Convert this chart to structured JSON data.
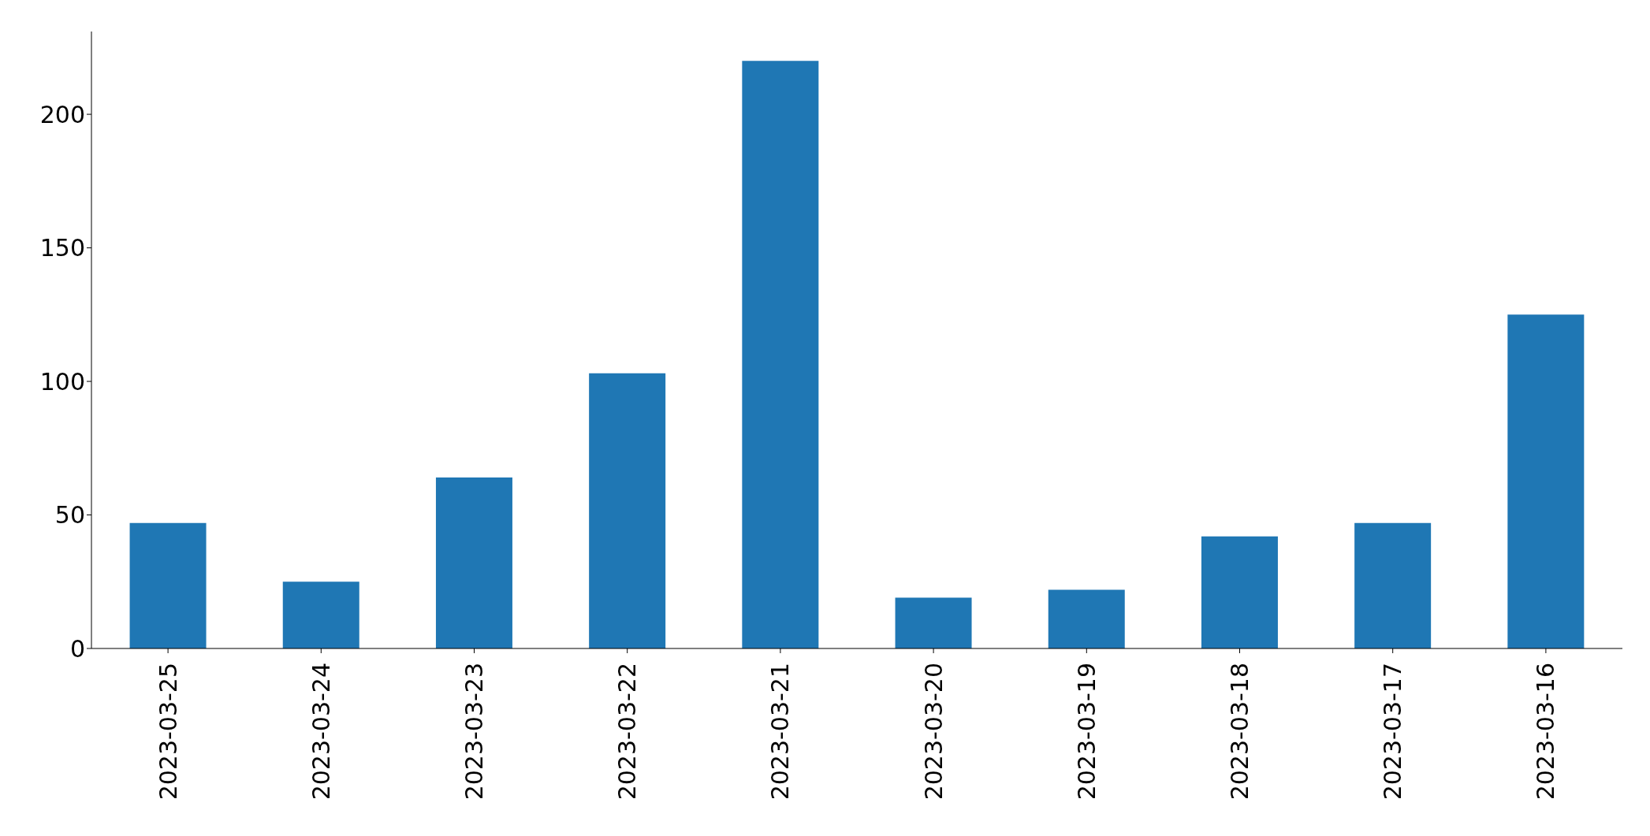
{
  "chart_data": {
    "type": "bar",
    "categories": [
      "2023-03-25",
      "2023-03-24",
      "2023-03-23",
      "2023-03-22",
      "2023-03-21",
      "2023-03-20",
      "2023-03-19",
      "2023-03-18",
      "2023-03-17",
      "2023-03-16"
    ],
    "values": [
      47,
      25,
      64,
      103,
      220,
      19,
      22,
      42,
      47,
      125
    ],
    "color": "#1f77b4",
    "ylim": [
      0,
      231
    ],
    "yticks": [
      0,
      50,
      100,
      150,
      200
    ],
    "grid": false,
    "legend": false
  }
}
